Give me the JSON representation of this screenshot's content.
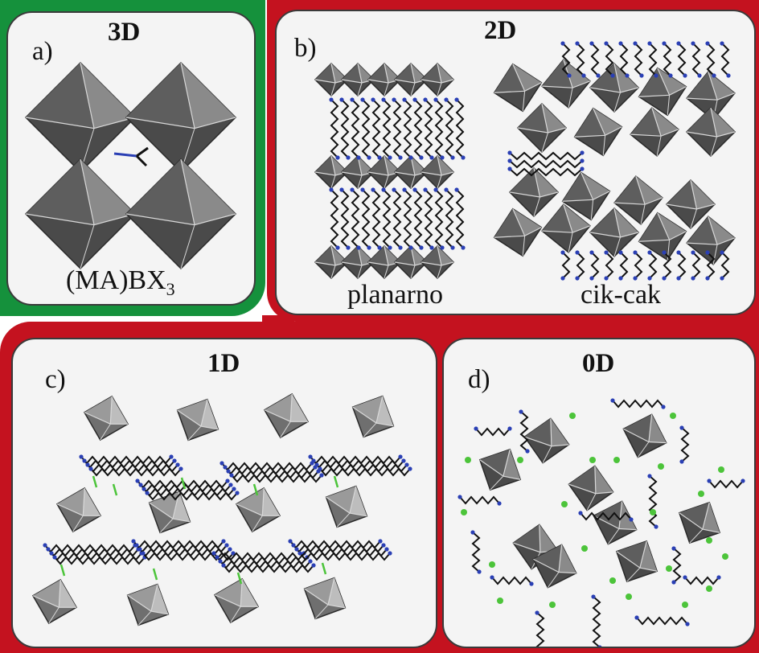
{
  "colors": {
    "frame_3d": "#15913c",
    "frame_low_dim": "#c4121f",
    "panel": "#f4f4f4",
    "octahedron_dark": "#4a4a4a",
    "octahedron_light": "#8a8a8a",
    "carbon": "#111111",
    "nitrogen": "#2a3fb4",
    "halide": "#4cc43a"
  },
  "panels": {
    "a": {
      "letter": "a)",
      "dim": "3D",
      "cation": "(MA)BX",
      "subscript": "3"
    },
    "b": {
      "letter": "b)",
      "dim": "2D",
      "left_caption": "planarno",
      "right_caption": "cik-cak"
    },
    "c": {
      "letter": "c)",
      "dim": "1D"
    },
    "d": {
      "letter": "d)",
      "dim": "0D"
    }
  },
  "icons": [
    "octahedron-icon",
    "organic-chain-icon",
    "halide-ion-icon"
  ]
}
